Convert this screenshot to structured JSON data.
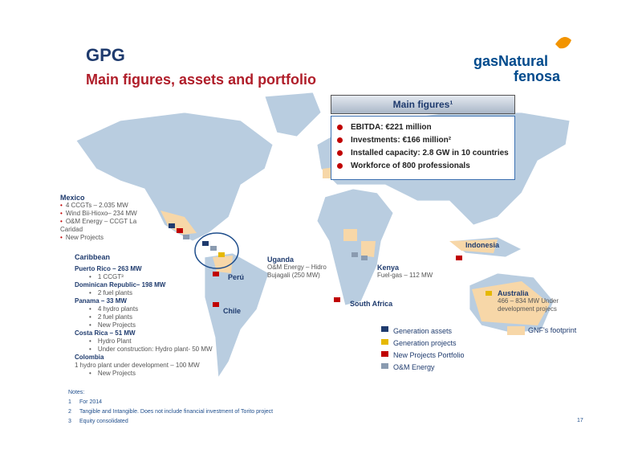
{
  "header": {
    "title": "GPG",
    "subtitle": "Main figures, assets and portfolio",
    "logo_line1": "gasNatural",
    "logo_line2": "fenosa"
  },
  "main_figures": {
    "title": "Main figures¹",
    "items": [
      "EBITDA: €221 million",
      "Investments: €166 million²",
      "Installed capacity: 2.8 GW in 10 countries",
      "Workforce of 800 professionals"
    ]
  },
  "mexico": {
    "title": "Mexico",
    "items": [
      "4 CCGTs – 2.035 MW",
      "Wind Bii-Hioxo– 234 MW",
      "O&M Energy – CCGT La Caridad",
      "New Projects"
    ]
  },
  "caribbean": {
    "title": "Caribbean",
    "countries": [
      {
        "name": "Puerto Rico – 263 MW",
        "items": [
          "1 CCGT³"
        ]
      },
      {
        "name": "Dominican Republic– 198 MW",
        "items": [
          "2 fuel plants"
        ]
      },
      {
        "name": "Panama – 33 MW",
        "items": [
          "4 hydro plants",
          "2 fuel plants",
          "New Projects"
        ]
      },
      {
        "name": "Costa Rica – 51 MW",
        "items": [
          "Hydro Plant",
          "Under construction: Hydro plant- 50 MW"
        ]
      },
      {
        "name": "Colombia",
        "note": "1 hydro plant under development – 100 MW",
        "items": [
          "New Projects"
        ]
      }
    ]
  },
  "locations": {
    "peru": {
      "name": "Perú"
    },
    "chile": {
      "name": "Chile"
    },
    "uganda": {
      "name": "Uganda",
      "detail": "O&M Energy – Hidro Bujagali (250 MW)"
    },
    "kenya": {
      "name": "Kenya",
      "detail": "Fuel-gas – 112 MW"
    },
    "south_africa": {
      "name": "South Africa"
    },
    "indonesia": {
      "name": "Indonesia"
    },
    "australia": {
      "name": "Australia",
      "detail": "466 – 834 MW Under development projecs"
    }
  },
  "legend": {
    "items": [
      "Generation assets",
      "Generation projects",
      "New Projects Portfolio",
      "O&M Energy"
    ],
    "footprint": "GNF's footprint"
  },
  "notes": {
    "title": "Notes:",
    "items": [
      {
        "number": "1",
        "text": "For 2014"
      },
      {
        "number": "2",
        "text": "Tangible and Intangible. Does not include financial investment of Torito project"
      },
      {
        "number": "3",
        "text": "Equity consolidated"
      }
    ]
  },
  "page_number": "17"
}
